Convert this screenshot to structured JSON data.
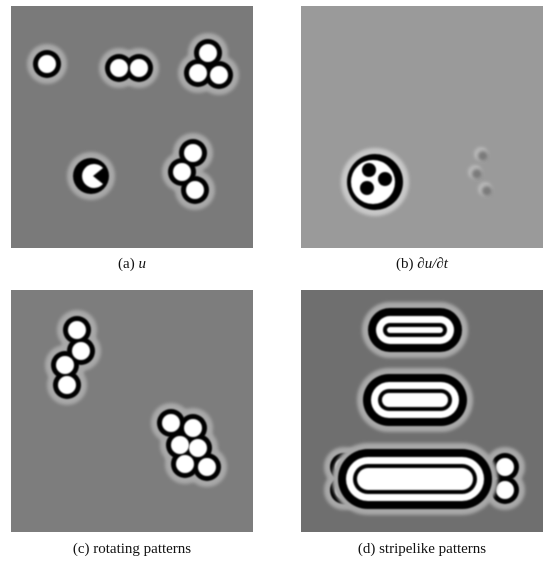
{
  "panels": [
    {
      "label": "(a)",
      "math": "u"
    },
    {
      "label": "(b)",
      "math": "∂u/∂t"
    },
    {
      "label": "(c)",
      "caption": "rotating patterns"
    },
    {
      "label": "(d)",
      "caption": "stripelike patterns"
    }
  ]
}
